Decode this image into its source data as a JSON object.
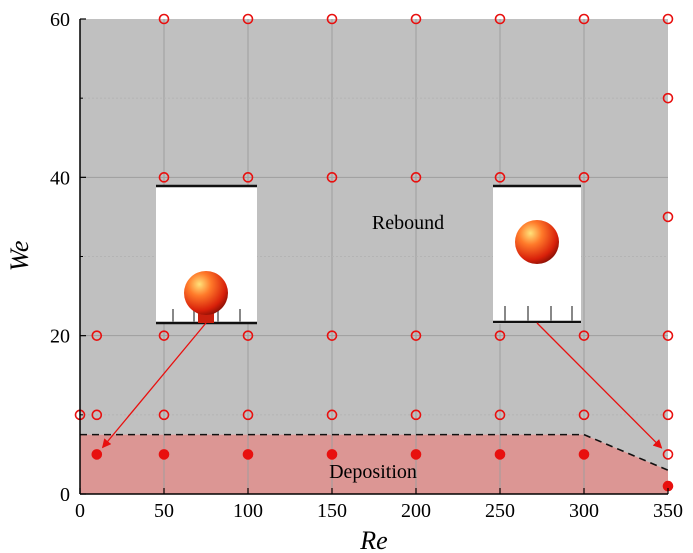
{
  "chart_data": {
    "type": "scatter",
    "xlabel": "Re",
    "ylabel": "We",
    "xlim": [
      0,
      350
    ],
    "ylim": [
      0,
      60
    ],
    "x_ticks": [
      "0",
      "50",
      "100",
      "150",
      "200",
      "250",
      "300",
      "350"
    ],
    "y_ticks": [
      "0",
      "20",
      "40",
      "60"
    ],
    "grid": true,
    "series": [
      {
        "name": "Rebound",
        "marker": "open-circle",
        "color": "#e8100f",
        "points": [
          [
            0,
            10
          ],
          [
            10,
            10
          ],
          [
            10,
            20
          ],
          [
            50,
            10
          ],
          [
            50,
            20
          ],
          [
            50,
            40
          ],
          [
            50,
            60
          ],
          [
            100,
            10
          ],
          [
            100,
            20
          ],
          [
            100,
            40
          ],
          [
            100,
            60
          ],
          [
            150,
            10
          ],
          [
            150,
            20
          ],
          [
            150,
            40
          ],
          [
            150,
            60
          ],
          [
            200,
            10
          ],
          [
            200,
            20
          ],
          [
            200,
            40
          ],
          [
            200,
            60
          ],
          [
            250,
            10
          ],
          [
            250,
            20
          ],
          [
            250,
            40
          ],
          [
            250,
            60
          ],
          [
            300,
            10
          ],
          [
            300,
            20
          ],
          [
            300,
            40
          ],
          [
            300,
            60
          ],
          [
            350,
            5
          ],
          [
            350,
            10
          ],
          [
            350,
            20
          ],
          [
            350,
            35
          ],
          [
            350,
            50
          ],
          [
            350,
            60
          ]
        ]
      },
      {
        "name": "Deposition",
        "marker": "filled-circle",
        "color": "#e8100f",
        "points": [
          [
            10,
            5
          ],
          [
            50,
            5
          ],
          [
            100,
            5
          ],
          [
            150,
            5
          ],
          [
            200,
            5
          ],
          [
            250,
            5
          ],
          [
            300,
            5
          ],
          [
            350,
            1
          ]
        ]
      }
    ],
    "boundary": [
      [
        0,
        7.5
      ],
      [
        300,
        7.5
      ],
      [
        350,
        3
      ]
    ],
    "regions": {
      "rebound": {
        "label": "Rebound",
        "color": "#c0c0c0",
        "label_at": [
          150,
          33.5
        ]
      },
      "deposition": {
        "label": "Deposition",
        "color": "#dc9694",
        "label_at": [
          150,
          2
        ]
      }
    },
    "insets": [
      {
        "name": "inset-deposition",
        "arrow_to": [
          10,
          5
        ]
      },
      {
        "name": "inset-rebound",
        "arrow_to": [
          350,
          5
        ]
      }
    ]
  }
}
